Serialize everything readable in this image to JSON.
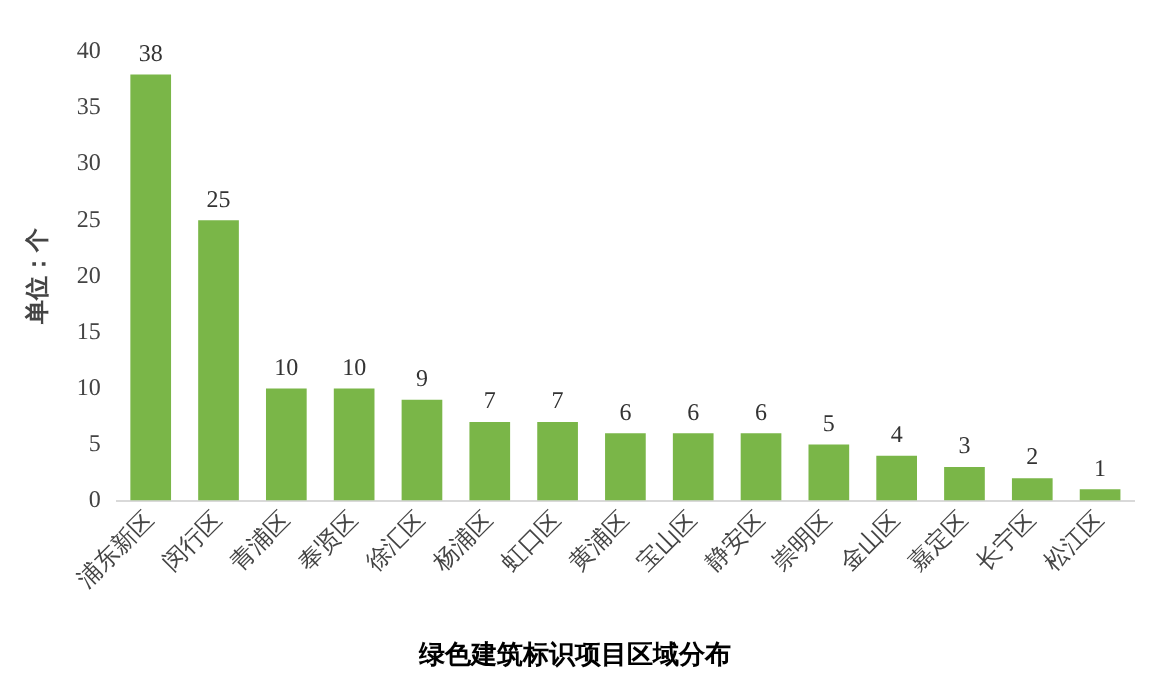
{
  "chart_data": {
    "type": "bar",
    "title": "绿色建筑标识项目区域分布",
    "ylabel": "单位：个",
    "categories": [
      "浦东新区",
      "闵行区",
      "青浦区",
      "奉贤区",
      "徐汇区",
      "杨浦区",
      "虹口区",
      "黄浦区",
      "宝山区",
      "静安区",
      "崇明区",
      "金山区",
      "嘉定区",
      "长宁区",
      "松江区"
    ],
    "values": [
      38,
      25,
      10,
      10,
      9,
      7,
      7,
      6,
      6,
      6,
      5,
      4,
      3,
      2,
      1
    ],
    "color": "#7ab648",
    "ylim": [
      0,
      40
    ],
    "yticks": [
      0,
      5,
      10,
      15,
      20,
      25,
      30,
      35,
      40
    ],
    "grid": false,
    "data_labels": true
  }
}
